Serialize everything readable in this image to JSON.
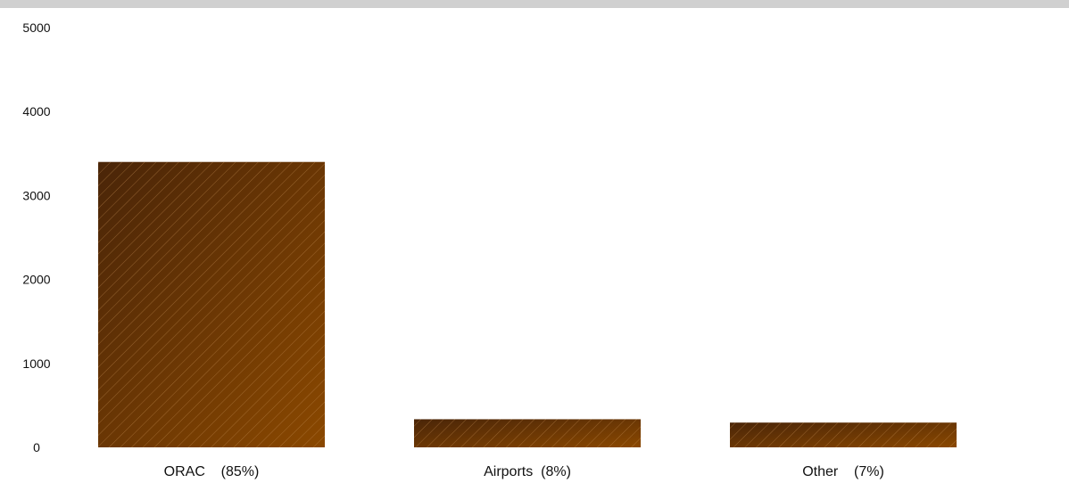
{
  "colors": {
    "top_bar": "#d0d0d0",
    "bar_dark": "#4a2508",
    "bar_light": "#8a4800",
    "hatch": "#c08a50"
  },
  "chart_data": {
    "type": "bar",
    "categories": [
      "ORAC    (85%)",
      "Airports  (8%)",
      "Other    (7%)"
    ],
    "values": [
      3400,
      335,
      295
    ],
    "ylim": [
      0,
      5000
    ],
    "yticks": [
      0,
      1000,
      2000,
      3000,
      4000,
      5000
    ],
    "title": "",
    "xlabel": "",
    "ylabel": "",
    "grid": false,
    "legend": "none"
  }
}
